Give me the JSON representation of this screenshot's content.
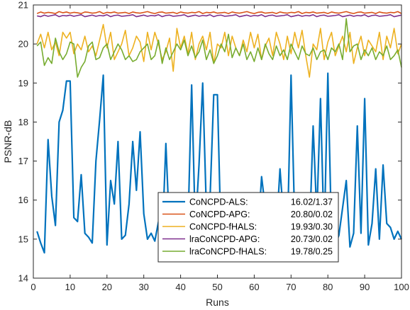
{
  "chart_data": {
    "type": "line",
    "xlabel": "Runs",
    "ylabel": "PSNR-dB",
    "xlim": [
      0,
      100
    ],
    "ylim": [
      14,
      21
    ],
    "xticks": [
      0,
      10,
      20,
      30,
      40,
      50,
      60,
      70,
      80,
      90,
      100
    ],
    "yticks": [
      14,
      15,
      16,
      17,
      18,
      19,
      20,
      21
    ],
    "grid": false,
    "legend_position": "bottom-center",
    "x": [
      1,
      2,
      3,
      4,
      5,
      6,
      7,
      8,
      9,
      10,
      11,
      12,
      13,
      14,
      15,
      16,
      17,
      18,
      19,
      20,
      21,
      22,
      23,
      24,
      25,
      26,
      27,
      28,
      29,
      30,
      31,
      32,
      33,
      34,
      35,
      36,
      37,
      38,
      39,
      40,
      41,
      42,
      43,
      44,
      45,
      46,
      47,
      48,
      49,
      50,
      51,
      52,
      53,
      54,
      55,
      56,
      57,
      58,
      59,
      60,
      61,
      62,
      63,
      64,
      65,
      66,
      67,
      68,
      69,
      70,
      71,
      72,
      73,
      74,
      75,
      76,
      77,
      78,
      79,
      80,
      81,
      82,
      83,
      84,
      85,
      86,
      87,
      88,
      89,
      90,
      91,
      92,
      93,
      94,
      95,
      96,
      97,
      98,
      99,
      100
    ],
    "series": [
      {
        "name": "CoNCPD-ALS:",
        "stat": "16.02/1.37",
        "color": "#0072BD",
        "width": 2.2,
        "values": [
          15.2,
          14.9,
          14.65,
          17.55,
          16.1,
          15.35,
          18.0,
          18.3,
          19.05,
          19.05,
          15.55,
          15.45,
          16.65,
          15.15,
          15.05,
          14.9,
          17.0,
          18.05,
          19.2,
          14.85,
          16.5,
          15.9,
          17.5,
          15.0,
          15.1,
          15.9,
          17.5,
          16.25,
          17.75,
          15.65,
          15.0,
          15.15,
          14.95,
          15.45,
          14.95,
          17.45,
          15.2,
          15.0,
          15.3,
          15.5,
          14.9,
          15.3,
          18.95,
          15.25,
          16.9,
          19.0,
          15.75,
          16.05,
          18.7,
          18.7,
          14.9,
          15.8,
          15.3,
          15.0,
          15.5,
          15.9,
          15.15,
          15.15,
          15.0,
          15.2,
          15.1,
          16.6,
          15.8,
          16.15,
          15.0,
          15.2,
          16.8,
          15.5,
          15.0,
          19.2,
          15.4,
          14.9,
          15.35,
          15.05,
          15.05,
          17.9,
          15.6,
          18.6,
          15.0,
          19.25,
          15.05,
          14.85,
          15.1,
          15.8,
          16.5,
          14.8,
          15.15,
          17.9,
          15.15,
          18.6,
          14.85,
          15.4,
          16.8,
          15.0,
          16.9,
          15.4,
          15.3,
          15.0,
          15.2,
          15.0
        ]
      },
      {
        "name": "CoNCPD-APG:",
        "stat": "20.80/0.02",
        "color": "#D95319",
        "width": 1.6,
        "values": [
          20.78,
          20.82,
          20.79,
          20.81,
          20.8,
          20.78,
          20.83,
          20.8,
          20.82,
          20.79,
          20.81,
          20.8,
          20.78,
          20.82,
          20.81,
          20.79,
          20.8,
          20.83,
          20.78,
          20.81,
          20.8,
          20.82,
          20.79,
          20.8,
          20.81,
          20.78,
          20.82,
          20.8,
          20.79,
          20.81,
          20.83,
          20.8,
          20.78,
          20.81,
          20.82,
          20.79,
          20.8,
          20.81,
          20.78,
          20.82,
          20.8,
          20.79,
          20.81,
          20.8,
          20.83,
          20.78,
          20.81,
          20.8,
          20.82,
          20.79,
          20.8,
          20.81,
          20.78,
          20.82,
          20.8,
          20.79,
          20.81,
          20.83,
          20.8,
          20.78,
          20.81,
          20.82,
          20.79,
          20.8,
          20.81,
          20.78,
          20.82,
          20.8,
          20.79,
          20.81,
          20.8,
          20.83,
          20.78,
          20.81,
          20.8,
          20.82,
          20.79,
          20.8,
          20.81,
          20.78,
          20.82,
          20.8,
          20.79,
          20.81,
          20.83,
          20.8,
          20.78,
          20.81,
          20.82,
          20.79,
          20.8,
          20.81,
          20.78,
          20.82,
          20.8,
          20.79,
          20.81,
          20.8,
          20.83,
          20.78
        ]
      },
      {
        "name": "CoNCPD-fHALS:",
        "stat": "19.93/0.30",
        "color": "#EDB120",
        "width": 1.6,
        "values": [
          20.0,
          20.25,
          19.9,
          20.3,
          19.85,
          20.05,
          19.7,
          20.3,
          20.15,
          20.3,
          19.75,
          20.0,
          19.85,
          20.2,
          19.8,
          19.95,
          19.7,
          20.1,
          20.5,
          19.9,
          20.3,
          19.6,
          19.8,
          20.0,
          20.35,
          19.7,
          19.9,
          20.2,
          20.05,
          19.55,
          20.3,
          19.85,
          20.3,
          20.0,
          19.6,
          19.8,
          20.15,
          19.3,
          20.4,
          19.9,
          20.2,
          19.75,
          20.3,
          19.6,
          20.0,
          20.2,
          19.85,
          20.3,
          19.5,
          20.0,
          19.9,
          20.3,
          19.7,
          20.2,
          19.9,
          19.7,
          20.1,
          19.8,
          20.3,
          19.9,
          20.25,
          19.6,
          19.95,
          20.15,
          19.7,
          20.3,
          20.0,
          19.6,
          20.2,
          19.75,
          20.3,
          19.9,
          20.35,
          19.7,
          19.15,
          20.0,
          19.85,
          20.4,
          19.6,
          20.05,
          20.3,
          19.7,
          19.95,
          20.2,
          19.8,
          20.3,
          19.5,
          19.9,
          20.2,
          19.7,
          20.1,
          19.95,
          19.8,
          20.3,
          19.6,
          20.2,
          19.9,
          20.4,
          19.75,
          20.0
        ]
      },
      {
        "name": "lraCoNCPD-APG:",
        "stat": "20.73/0.02",
        "color": "#7E2F8E",
        "width": 1.6,
        "values": [
          20.72,
          20.7,
          20.74,
          20.71,
          20.73,
          20.75,
          20.7,
          20.73,
          20.72,
          20.74,
          20.71,
          20.73,
          20.75,
          20.7,
          20.72,
          20.74,
          20.71,
          20.73,
          20.72,
          20.75,
          20.7,
          20.73,
          20.74,
          20.71,
          20.72,
          20.73,
          20.75,
          20.7,
          20.72,
          20.74,
          20.71,
          20.73,
          20.72,
          20.75,
          20.7,
          20.73,
          20.74,
          20.71,
          20.72,
          20.73,
          20.75,
          20.7,
          20.72,
          20.74,
          20.71,
          20.73,
          20.72,
          20.75,
          20.7,
          20.73,
          20.74,
          20.71,
          20.72,
          20.73,
          20.75,
          20.7,
          20.72,
          20.74,
          20.71,
          20.73,
          20.72,
          20.75,
          20.7,
          20.73,
          20.74,
          20.71,
          20.72,
          20.73,
          20.75,
          20.7,
          20.72,
          20.74,
          20.71,
          20.73,
          20.72,
          20.75,
          20.7,
          20.73,
          20.74,
          20.71,
          20.72,
          20.73,
          20.75,
          20.7,
          20.72,
          20.74,
          20.71,
          20.73,
          20.72,
          20.75,
          20.7,
          20.73,
          20.74,
          20.71,
          20.72,
          20.73,
          20.75,
          20.7,
          20.72,
          20.74
        ]
      },
      {
        "name": "lraCoNCPD-fHALS:",
        "stat": "19.78/0.25",
        "color": "#77AC30",
        "width": 1.6,
        "values": [
          19.95,
          20.05,
          19.45,
          19.65,
          19.5,
          20.15,
          19.8,
          19.6,
          19.75,
          20.05,
          20.0,
          19.15,
          19.4,
          19.55,
          19.95,
          20.05,
          19.6,
          19.65,
          19.9,
          20.0,
          19.6,
          19.8,
          20.0,
          19.85,
          19.6,
          19.7,
          19.55,
          19.6,
          19.8,
          19.9,
          20.0,
          19.6,
          19.7,
          20.1,
          19.5,
          19.9,
          19.6,
          19.8,
          20.0,
          19.85,
          20.1,
          19.7,
          19.95,
          19.65,
          19.8,
          20.1,
          19.6,
          19.85,
          19.5,
          19.7,
          20.0,
          19.8,
          20.25,
          19.65,
          19.9,
          19.7,
          20.0,
          19.6,
          19.8,
          19.55,
          19.9,
          19.6,
          20.0,
          19.75,
          19.6,
          19.95,
          19.7,
          19.85,
          19.6,
          20.0,
          19.8,
          19.6,
          19.95,
          19.75,
          19.7,
          19.9,
          19.6,
          19.8,
          19.85,
          19.6,
          19.9,
          19.8,
          20.0,
          19.6,
          20.65,
          19.8,
          19.95,
          20.0,
          19.6,
          19.85,
          19.7,
          19.9,
          19.6,
          19.8,
          19.7,
          19.95,
          19.6,
          19.7,
          19.85,
          19.4
        ]
      }
    ]
  }
}
